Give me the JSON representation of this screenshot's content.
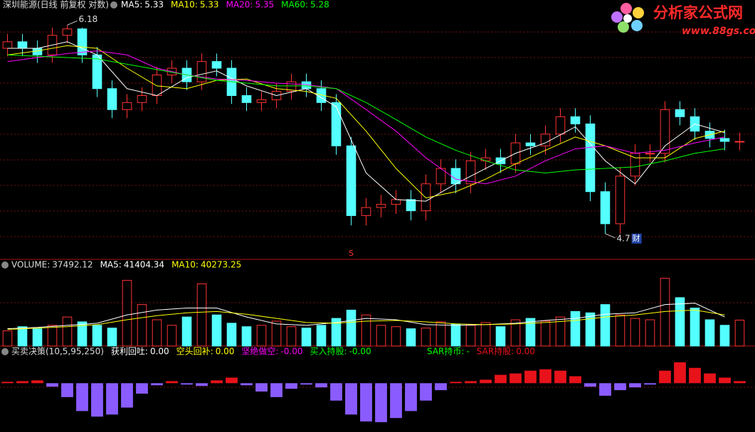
{
  "chart_data": [
    {
      "type": "candlestick",
      "title": "深圳能源(日线 前复权 对数)",
      "log": true,
      "ylim": [
        4.6,
        6.3
      ],
      "up_color": "#ff3232",
      "down_color": "#54ffff",
      "open": [
        6.0,
        6.05,
        6.0,
        5.95,
        6.1,
        6.15,
        5.95,
        5.7,
        5.55,
        5.6,
        5.65,
        5.8,
        5.85,
        5.75,
        5.9,
        5.85,
        5.65,
        5.6,
        5.62,
        5.68,
        5.75,
        5.7,
        5.6,
        5.3,
        4.85,
        4.9,
        4.92,
        4.95,
        4.88,
        5.05,
        5.15,
        5.05,
        5.2,
        5.22,
        5.18,
        5.32,
        5.3,
        5.38,
        5.5,
        5.45,
        5.0,
        4.8,
        5.1,
        5.25,
        5.25,
        5.55,
        5.5,
        5.4,
        5.35,
        5.33
      ],
      "high": [
        6.11,
        6.11,
        6.06,
        6.16,
        6.18,
        6.16,
        6.01,
        5.76,
        5.66,
        5.71,
        5.86,
        5.91,
        5.91,
        5.96,
        5.96,
        5.91,
        5.71,
        5.68,
        5.74,
        5.81,
        5.81,
        5.76,
        5.66,
        5.36,
        4.96,
        4.98,
        5.01,
        5.01,
        5.11,
        5.21,
        5.21,
        5.26,
        5.28,
        5.28,
        5.38,
        5.38,
        5.44,
        5.56,
        5.56,
        5.51,
        5.06,
        5.16,
        5.31,
        5.31,
        5.61,
        5.61,
        5.56,
        5.46,
        5.41,
        5.39
      ],
      "low": [
        5.94,
        5.94,
        5.89,
        5.89,
        6.04,
        5.89,
        5.64,
        5.49,
        5.49,
        5.54,
        5.59,
        5.74,
        5.69,
        5.69,
        5.79,
        5.59,
        5.54,
        5.54,
        5.56,
        5.62,
        5.64,
        5.54,
        5.24,
        4.79,
        4.79,
        4.84,
        4.86,
        4.82,
        4.82,
        4.99,
        4.99,
        4.99,
        5.14,
        5.12,
        5.12,
        5.24,
        5.24,
        5.32,
        5.39,
        4.94,
        4.74,
        4.74,
        5.04,
        5.19,
        5.19,
        5.44,
        5.34,
        5.29,
        5.27,
        5.27
      ],
      "close": [
        6.05,
        6.0,
        5.95,
        6.1,
        6.15,
        5.95,
        5.7,
        5.55,
        5.6,
        5.65,
        5.8,
        5.85,
        5.75,
        5.9,
        5.85,
        5.65,
        5.6,
        5.62,
        5.68,
        5.75,
        5.7,
        5.6,
        5.3,
        4.85,
        4.9,
        4.92,
        4.95,
        4.88,
        5.05,
        5.15,
        5.05,
        5.2,
        5.22,
        5.18,
        5.32,
        5.3,
        5.38,
        5.5,
        5.45,
        5.0,
        4.8,
        5.1,
        5.25,
        5.25,
        5.55,
        5.5,
        5.4,
        5.35,
        5.33,
        5.33
      ],
      "high_label": "6.18",
      "low_label": "4.7",
      "note_icon": "财",
      "sell_signal": {
        "label": "S",
        "x": 23
      },
      "lines": [
        {
          "name": "MA5:",
          "last_value": 5.33,
          "color": "#ffffff",
          "x": [
            0,
            2,
            4,
            6,
            8,
            10,
            12,
            14,
            16,
            18,
            20,
            22,
            24,
            26,
            28,
            30,
            32,
            34,
            36,
            38,
            40,
            42,
            44,
            46,
            48
          ],
          "values": [
            6.0,
            6.0,
            6.05,
            5.95,
            5.7,
            5.65,
            5.78,
            5.83,
            5.72,
            5.65,
            5.7,
            5.57,
            5.12,
            4.95,
            4.94,
            5.05,
            5.15,
            5.25,
            5.32,
            5.43,
            5.2,
            5.05,
            5.3,
            5.45,
            5.39
          ]
        },
        {
          "name": "MA10:",
          "last_value": 5.33,
          "color": "#ffff00",
          "x": [
            0,
            2,
            4,
            6,
            8,
            10,
            12,
            14,
            16,
            18,
            20,
            22,
            24,
            26,
            28,
            30,
            32,
            34,
            36,
            38,
            40,
            42,
            44,
            46,
            48
          ],
          "values": [
            5.95,
            5.98,
            6.02,
            6.0,
            5.85,
            5.72,
            5.7,
            5.76,
            5.77,
            5.7,
            5.68,
            5.63,
            5.4,
            5.15,
            4.96,
            5.0,
            5.08,
            5.18,
            5.27,
            5.36,
            5.3,
            5.22,
            5.22,
            5.35,
            5.4
          ]
        },
        {
          "name": "MA20:",
          "last_value": 5.35,
          "color": "#ff00ff",
          "x": [
            0,
            2,
            4,
            6,
            8,
            10,
            12,
            14,
            16,
            18,
            20,
            22,
            24,
            26,
            28,
            30,
            32,
            34,
            36,
            38,
            40,
            42,
            44,
            46,
            48
          ],
          "values": [
            5.9,
            5.93,
            5.96,
            5.98,
            5.95,
            5.85,
            5.8,
            5.77,
            5.76,
            5.74,
            5.73,
            5.7,
            5.55,
            5.4,
            5.22,
            5.08,
            5.05,
            5.1,
            5.2,
            5.28,
            5.3,
            5.25,
            5.27,
            5.32,
            5.36
          ]
        },
        {
          "name": "MA60:",
          "last_value": 5.28,
          "color": "#00ff00",
          "x": [
            0,
            2,
            4,
            6,
            8,
            10,
            12,
            14,
            16,
            18,
            20,
            22,
            24,
            26,
            28,
            30,
            32,
            34,
            36,
            38,
            40,
            42,
            44,
            46,
            48
          ],
          "values": [
            5.95,
            5.94,
            5.93,
            5.92,
            5.88,
            5.84,
            5.8,
            5.76,
            5.74,
            5.72,
            5.72,
            5.7,
            5.6,
            5.48,
            5.36,
            5.27,
            5.2,
            5.14,
            5.12,
            5.14,
            5.15,
            5.16,
            5.2,
            5.25,
            5.28
          ]
        }
      ]
    },
    {
      "type": "volume",
      "name": "VOLUME:",
      "last_value": 37492.12,
      "ylim": [
        0,
        110000
      ],
      "values": [
        22000,
        28000,
        25000,
        30000,
        42000,
        35000,
        30000,
        26000,
        95000,
        60000,
        38000,
        30000,
        42000,
        90000,
        45000,
        33000,
        28000,
        30000,
        36000,
        28000,
        26000,
        30000,
        40000,
        52000,
        45000,
        30000,
        28000,
        25000,
        26000,
        35000,
        32000,
        30000,
        34000,
        28000,
        38000,
        40000,
        36000,
        42000,
        50000,
        48000,
        60000,
        45000,
        40000,
        38000,
        98000,
        70000,
        55000,
        38000,
        30000,
        37492.12
      ],
      "lines": [
        {
          "name": "MA5:",
          "last_value": 41404.34,
          "color": "#ffffff",
          "x": [
            0,
            2,
            4,
            6,
            8,
            10,
            12,
            14,
            16,
            18,
            20,
            22,
            24,
            26,
            28,
            30,
            32,
            34,
            36,
            38,
            40,
            42,
            44,
            46,
            48
          ],
          "values": [
            25000,
            27000,
            30000,
            33000,
            45000,
            52000,
            55000,
            55000,
            42000,
            32000,
            30000,
            34000,
            40000,
            38000,
            31000,
            30000,
            31000,
            33000,
            37000,
            40000,
            46000,
            48000,
            60000,
            62000,
            42000
          ]
        },
        {
          "name": "MA10:",
          "last_value": 40273.25,
          "color": "#ffff00",
          "x": [
            0,
            2,
            4,
            6,
            8,
            10,
            12,
            14,
            16,
            18,
            20,
            22,
            24,
            26,
            28,
            30,
            32,
            34,
            36,
            38,
            40,
            42,
            44,
            46,
            48
          ],
          "values": [
            24000,
            26000,
            28000,
            31000,
            38000,
            44000,
            48000,
            50000,
            46000,
            40000,
            34000,
            33000,
            36000,
            37000,
            35000,
            32000,
            31000,
            32000,
            34000,
            37000,
            42000,
            45000,
            50000,
            52000,
            45000
          ]
        }
      ]
    },
    {
      "type": "histogram",
      "title": "买卖决策(10,5,95,250)",
      "ylim": [
        -65,
        35
      ],
      "up_color": "#e8121a",
      "down_color": "#8a5cff",
      "values": [
        2,
        3,
        4,
        -5,
        -20,
        -40,
        -48,
        -45,
        -35,
        -15,
        -3,
        3,
        -2,
        -4,
        4,
        8,
        -3,
        -12,
        -20,
        -8,
        -2,
        -6,
        -25,
        -45,
        -55,
        -56,
        -50,
        -40,
        -25,
        -10,
        2,
        3,
        5,
        12,
        14,
        18,
        20,
        18,
        10,
        -5,
        -18,
        -10,
        -6,
        -2,
        18,
        30,
        22,
        14,
        8,
        3
      ],
      "indicators": [
        {
          "name": "获利回吐:",
          "value": 0,
          "value_label": "0.00",
          "color": "#ffffff"
        },
        {
          "name": "空头回补:",
          "value": 0,
          "value_label": "0.00",
          "color": "#ffff00"
        },
        {
          "name": "坚绝做空:",
          "value": 0,
          "value_label": "-0.00",
          "color": "#ff00ff"
        },
        {
          "name": "买入持股:",
          "value": 0,
          "value_label": "-0.00",
          "color": "#00ff00"
        },
        {
          "name": "SAR持币:",
          "value_label": "-",
          "color": "#00ff00"
        },
        {
          "name": "SAR持股:",
          "value": 0,
          "value_label": "0.00",
          "color": "#e8121a"
        }
      ]
    }
  ]
}
